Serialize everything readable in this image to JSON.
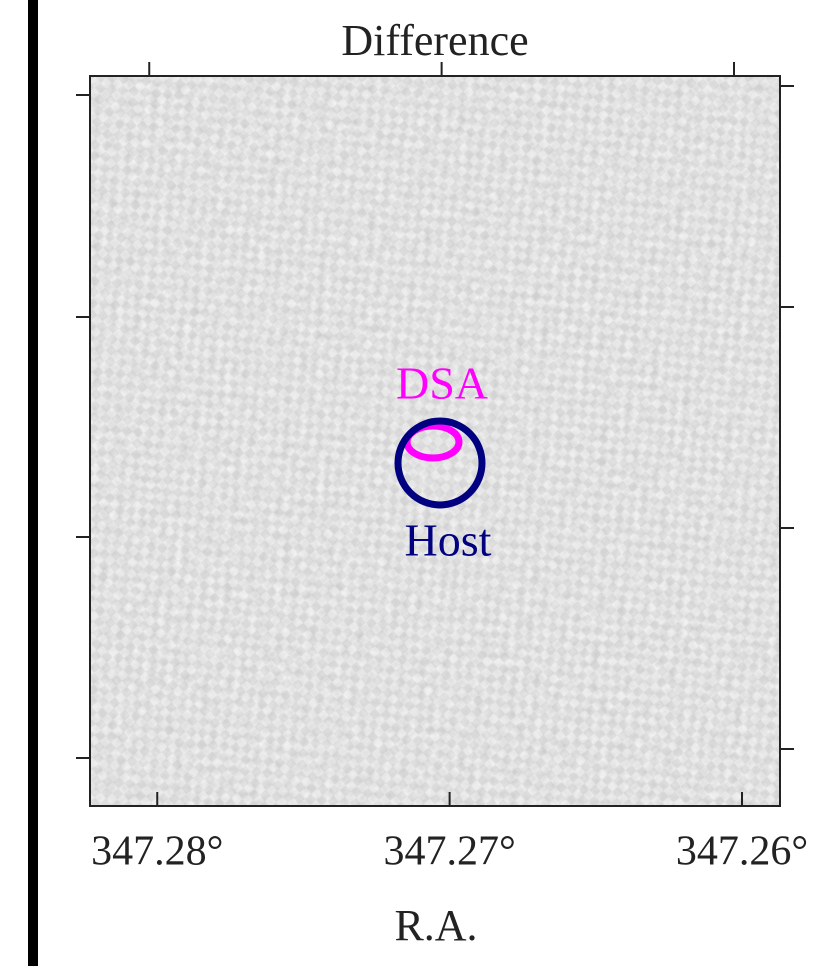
{
  "chart_data": {
    "type": "image",
    "title": "Difference",
    "xlabel": "R.A.",
    "xlim": [
      347.2823,
      347.2587
    ],
    "xticks": [
      {
        "value": 347.28,
        "label": "347.28°"
      },
      {
        "value": 347.27,
        "label": "347.27°"
      },
      {
        "value": 347.26,
        "label": "347.26°"
      }
    ],
    "annotations": [
      {
        "text": "DSA",
        "color": "#ff00ff"
      },
      {
        "text": "Host",
        "color": "#000080"
      }
    ]
  }
}
